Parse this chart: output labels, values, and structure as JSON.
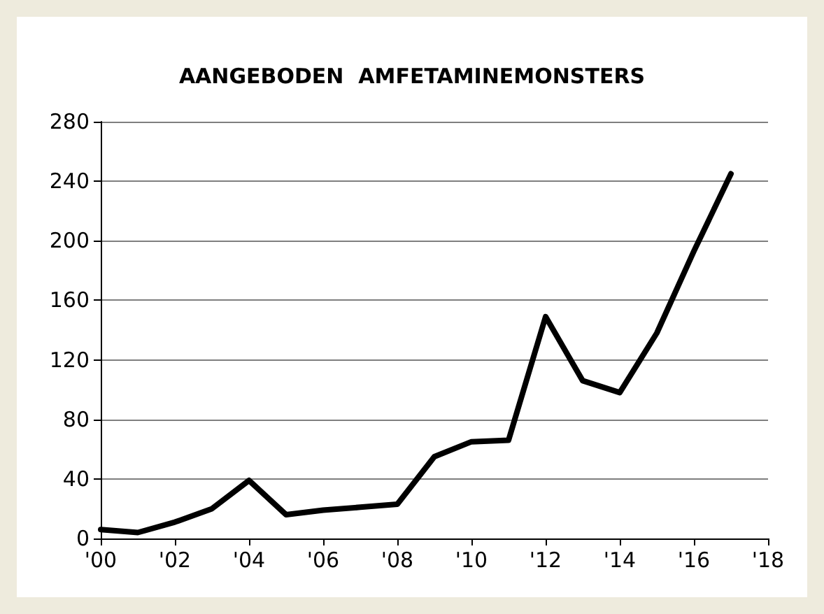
{
  "chart_data": {
    "type": "line",
    "title": "AANGEBODEN  AMFETAMINEMONSTERS",
    "x": [
      2000,
      2001,
      2002,
      2003,
      2004,
      2005,
      2006,
      2007,
      2008,
      2009,
      2010,
      2011,
      2012,
      2013,
      2014,
      2015,
      2016,
      2017
    ],
    "series": [
      {
        "color": "#000000",
        "values": [
          6,
          4,
          11,
          20,
          39,
          16,
          19,
          21,
          23,
          55,
          65,
          66,
          149,
          106,
          98,
          138,
          193,
          245
        ]
      }
    ],
    "xlim": [
      2000,
      2018
    ],
    "xticks": [
      {
        "value": 2000,
        "label": "'00"
      },
      {
        "value": 2002,
        "label": "'02"
      },
      {
        "value": 2004,
        "label": "'04"
      },
      {
        "value": 2006,
        "label": "'06"
      },
      {
        "value": 2008,
        "label": "'08"
      },
      {
        "value": 2010,
        "label": "'10"
      },
      {
        "value": 2012,
        "label": "'12"
      },
      {
        "value": 2014,
        "label": "'14"
      },
      {
        "value": 2016,
        "label": "'16"
      },
      {
        "value": 2018,
        "label": "'18"
      }
    ],
    "ylim": [
      0,
      280
    ],
    "yticks": [
      0,
      40,
      80,
      120,
      160,
      200,
      240,
      280
    ],
    "grid": "y",
    "marker": "none",
    "line_style": "solid"
  }
}
